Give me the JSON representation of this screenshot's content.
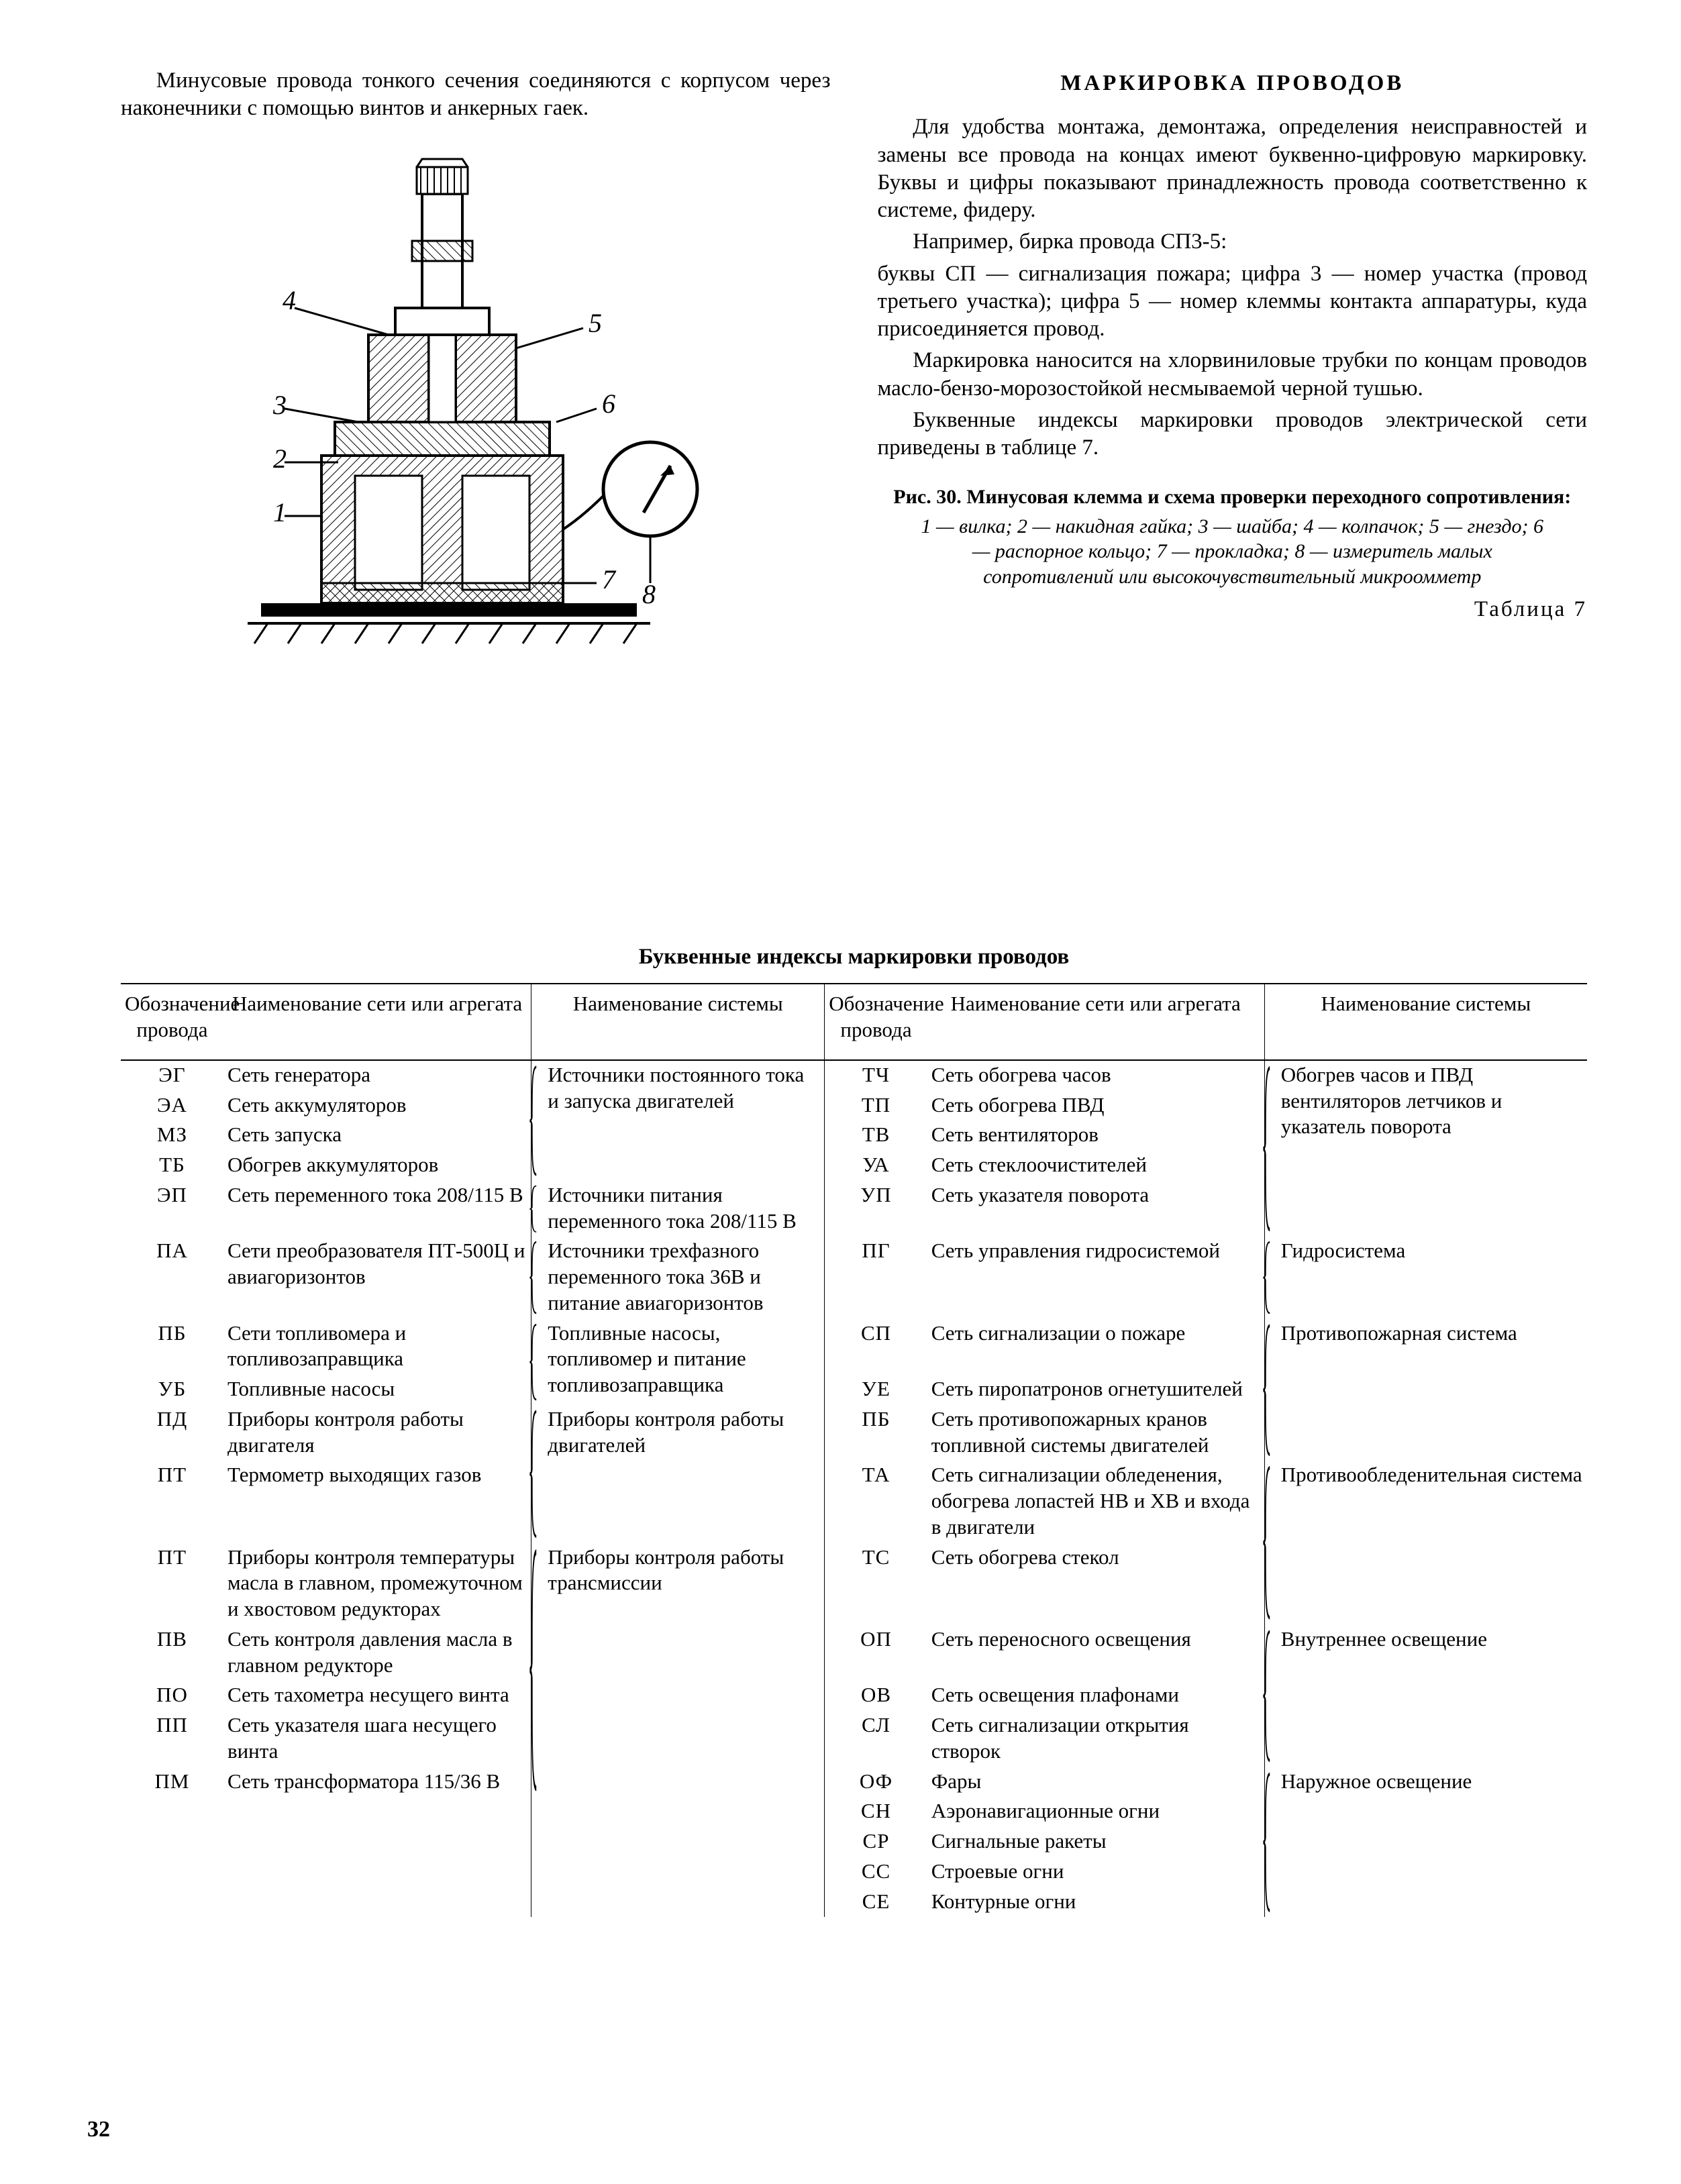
{
  "page_number": "32",
  "left": {
    "p1": "Минусовые провода тонкого сечения соединяются с корпусом через наконечники с помощью винтов и анкерных гаек."
  },
  "right": {
    "heading": "МАРКИРОВКА ПРОВОДОВ",
    "p1": "Для удобства монтажа, демонтажа, определения неисправностей и замены все провода на концах имеют буквенно-цифровую маркировку. Буквы и цифры показывают принадлежность провода соответственно к системе, фидеру.",
    "p2": "Например, бирка провода СП3-5:",
    "p3": "буквы СП — сигнализация пожара; цифра 3 — номер участка (провод третьего участка); цифра 5 — номер клеммы контакта аппаратуры, куда присоединяется провод.",
    "p4": "Маркировка наносится на хлорвиниловые трубки по концам проводов масло-бензо-морозостойкой несмываемой черной тушью.",
    "p5": "Буквенные индексы маркировки проводов электрической сети приведены в таблице 7.",
    "fig_title": "Рис. 30. Минусовая клемма и схема проверки переходного сопротивления:",
    "fig_legend": "1 — вилка; 2 — накидная гайка; 3 — шайба; 4 — колпачок; 5 — гнездо; 6 — распорное кольцо; 7 — прокладка; 8 — измеритель малых сопротивлений или высокочувствительный микроомметр"
  },
  "table": {
    "label": "Таблица 7",
    "title": "Буквенные индексы маркировки проводов",
    "head": {
      "c1": "Обозначение провода",
      "c2": "Наименование сети или агрегата",
      "c3": "Наименование системы",
      "c4": "Обозначение провода",
      "c5": "Наименование сети или агрегата",
      "c6": "Наименование системы"
    },
    "left_groups": [
      {
        "rows": [
          {
            "code": "ЭГ",
            "net": "Сеть генератора"
          },
          {
            "code": "ЭА",
            "net": "Сеть аккумуляторов"
          },
          {
            "code": "МЗ",
            "net": "Сеть запуска"
          },
          {
            "code": "ТБ",
            "net": "Обогрев аккумуляторов"
          }
        ],
        "sys": "Источники постоянного тока и запуска двигателей"
      },
      {
        "rows": [
          {
            "code": "ЭП",
            "net": "Сеть переменного тока 208/115 В"
          }
        ],
        "sys": "Источники питания переменного тока 208/115 В"
      },
      {
        "rows": [
          {
            "code": "ПА",
            "net": "Сети преобразователя ПТ-500Ц и авиагоризонтов"
          }
        ],
        "sys": "Источники трехфазного переменного тока 36В и питание авиагоризонтов"
      },
      {
        "rows": [
          {
            "code": "ПБ",
            "net": "Сети топливомера и топливозаправщика"
          },
          {
            "code": "УБ",
            "net": "Топливные насосы"
          }
        ],
        "sys": "Топливные насосы, топливомер и питание топливозаправщика"
      },
      {
        "rows": [
          {
            "code": "ПД",
            "net": "Приборы контроля работы двигателя"
          },
          {
            "code": "ПТ",
            "net": "Термометр выходящих газов"
          }
        ],
        "sys": "Приборы контроля работы двигателей"
      },
      {
        "rows": [
          {
            "code": "ПТ",
            "net": "Приборы контроля температуры масла в главном, промежуточном и хвостовом редукторах"
          },
          {
            "code": "ПВ",
            "net": "Сеть контроля давления масла в главном редукторе"
          },
          {
            "code": "ПО",
            "net": "Сеть тахометра несущего винта"
          },
          {
            "code": "ПП",
            "net": "Сеть указателя шага несущего винта"
          },
          {
            "code": "ПМ",
            "net": "Сеть трансформатора 115/36 В"
          }
        ],
        "sys": "Приборы контроля работы трансмиссии"
      }
    ],
    "right_groups": [
      {
        "rows": [
          {
            "code": "ТЧ",
            "net": "Сеть обогрева часов"
          },
          {
            "code": "ТП",
            "net": "Сеть обогрева ПВД"
          },
          {
            "code": "ТВ",
            "net": "Сеть вентиляторов"
          },
          {
            "code": "УА",
            "net": "Сеть стеклоочистителей"
          },
          {
            "code": "УП",
            "net": "Сеть указателя поворота"
          }
        ],
        "sys": "Обогрев часов и ПВД вентиляторов летчиков и указатель поворота"
      },
      {
        "rows": [
          {
            "code": "ПГ",
            "net": "Сеть управления гидросистемой"
          }
        ],
        "sys": "Гидросистема"
      },
      {
        "rows": [
          {
            "code": "СП",
            "net": "Сеть сигнализации о пожаре"
          },
          {
            "code": "УЕ",
            "net": "Сеть пиропатронов огнетушителей"
          },
          {
            "code": "ПБ",
            "net": "Сеть противопожарных кранов топливной системы двигателей"
          }
        ],
        "sys": "Противопожарная система"
      },
      {
        "rows": [
          {
            "code": "ТА",
            "net": "Сеть сигнализации обледенения, обогрева лопастей НВ и ХВ и входа в двигатели"
          },
          {
            "code": "ТС",
            "net": "Сеть обогрева стекол"
          }
        ],
        "sys": "Противообледенительная система"
      },
      {
        "rows": [
          {
            "code": "ОП",
            "net": "Сеть переносного освещения"
          },
          {
            "code": "ОВ",
            "net": "Сеть освещения плафонами"
          },
          {
            "code": "СЛ",
            "net": "Сеть сигнализации открытия створок"
          }
        ],
        "sys": "Внутреннее освещение"
      },
      {
        "rows": [
          {
            "code": "ОФ",
            "net": "Фары"
          },
          {
            "code": "СН",
            "net": "Аэронавигационные огни"
          },
          {
            "code": "СР",
            "net": "Сигнальные ракеты"
          },
          {
            "code": "СС",
            "net": "Строевые огни"
          },
          {
            "code": "СЕ",
            "net": "Контурные огни"
          }
        ],
        "sys": "Наружное освещение"
      }
    ]
  },
  "figure": {
    "callouts": [
      "1",
      "2",
      "3",
      "4",
      "5",
      "6",
      "7",
      "8"
    ]
  }
}
